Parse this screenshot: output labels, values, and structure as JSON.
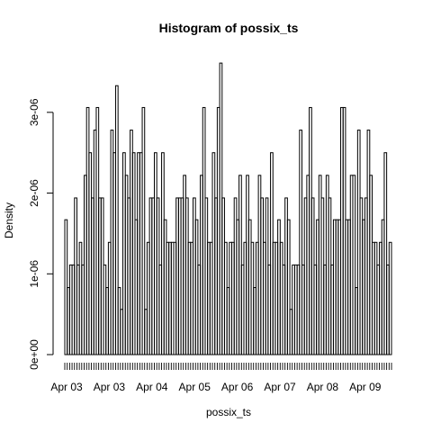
{
  "chart_data": {
    "type": "bar",
    "title": "Histogram of possix_ts",
    "xlabel": "possix_ts",
    "ylabel": "Density",
    "ylim": [
      0,
      3.6e-06
    ],
    "yticks": [
      {
        "value": 0,
        "label": "0e+00"
      },
      {
        "value": 1e-06,
        "label": "1e-06"
      },
      {
        "value": 2e-06,
        "label": "2e-06"
      },
      {
        "value": 3e-06,
        "label": "3e-06"
      }
    ],
    "xticks": [
      "Apr 03",
      "Apr 03",
      "Apr 04",
      "Apr 05",
      "Apr 06",
      "Apr 07",
      "Apr 08",
      "Apr 09"
    ],
    "grid": false,
    "values": [
      1.67e-06,
      8.3e-07,
      1.11e-06,
      1.11e-06,
      1.94e-06,
      1.11e-06,
      1.39e-06,
      1.11e-06,
      2.22e-06,
      3.06e-06,
      2.5e-06,
      1.94e-06,
      2.78e-06,
      3.06e-06,
      1.94e-06,
      1.94e-06,
      1.11e-06,
      8.3e-07,
      1.39e-06,
      2.78e-06,
      2.5e-06,
      3.33e-06,
      8.3e-07,
      5.6e-07,
      2.5e-06,
      2.22e-06,
      1.94e-06,
      2.78e-06,
      2.5e-06,
      1.67e-06,
      2.5e-06,
      2.5e-06,
      3.06e-06,
      5.6e-07,
      1.39e-06,
      1.94e-06,
      1.94e-06,
      2.5e-06,
      1.94e-06,
      1.11e-06,
      2.5e-06,
      1.67e-06,
      1.39e-06,
      1.39e-06,
      1.39e-06,
      1.39e-06,
      1.94e-06,
      1.94e-06,
      1.94e-06,
      2.22e-06,
      1.94e-06,
      1.39e-06,
      1.39e-06,
      1.94e-06,
      1.67e-06,
      1.11e-06,
      2.22e-06,
      3.06e-06,
      1.94e-06,
      1.39e-06,
      1.39e-06,
      2.5e-06,
      1.94e-06,
      3.06e-06,
      3.61e-06,
      1.94e-06,
      1.39e-06,
      8.3e-07,
      1.39e-06,
      1.39e-06,
      1.94e-06,
      1.67e-06,
      2.22e-06,
      1.11e-06,
      1.39e-06,
      2.22e-06,
      1.67e-06,
      1.39e-06,
      8.3e-07,
      1.39e-06,
      2.22e-06,
      1.94e-06,
      1.39e-06,
      1.94e-06,
      1.11e-06,
      2.5e-06,
      1.39e-06,
      1.39e-06,
      1.67e-06,
      1.39e-06,
      1.11e-06,
      1.94e-06,
      1.67e-06,
      5.6e-07,
      1.11e-06,
      1.11e-06,
      1.11e-06,
      2.78e-06,
      1.11e-06,
      1.94e-06,
      2.22e-06,
      3.06e-06,
      1.94e-06,
      1.11e-06,
      1.67e-06,
      2.22e-06,
      1.94e-06,
      1.11e-06,
      2.22e-06,
      1.94e-06,
      1.11e-06,
      1.67e-06,
      1.67e-06,
      1.67e-06,
      3.06e-06,
      3.06e-06,
      1.67e-06,
      1.67e-06,
      2.22e-06,
      2.22e-06,
      8.3e-07,
      2.78e-06,
      1.94e-06,
      1.67e-06,
      1.94e-06,
      2.78e-06,
      2.22e-06,
      1.39e-06,
      1.39e-06,
      1.11e-06,
      1.39e-06,
      1.67e-06,
      2.5e-06,
      1.11e-06,
      1.39e-06
    ]
  }
}
